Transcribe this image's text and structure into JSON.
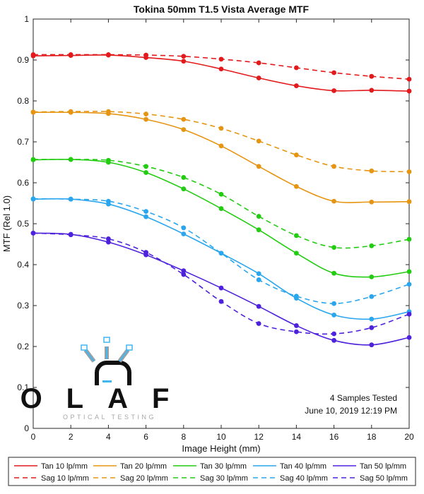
{
  "chart_data": {
    "type": "line",
    "title": "Tokina 50mm T1.5 Vista Average MTF",
    "xlabel": "Image Height (mm)",
    "ylabel": "MTF (Rel 1.0)",
    "xlim": [
      0,
      20
    ],
    "ylim": [
      0,
      1
    ],
    "x": [
      0,
      2,
      4,
      6,
      8,
      10,
      12,
      14,
      16,
      18,
      20
    ],
    "x_ticks": [
      "0",
      "2",
      "4",
      "6",
      "8",
      "10",
      "12",
      "14",
      "16",
      "18",
      "20"
    ],
    "y_ticks": [
      "0",
      "0.1",
      "0.2",
      "0.3",
      "0.4",
      "0.5",
      "0.6",
      "0.7",
      "0.8",
      "0.9",
      "1"
    ],
    "grid": false,
    "legend_position": "bottom",
    "series": [
      {
        "name": "Tan 10 lp/mm",
        "color": "#e31a1c",
        "dash": "solid",
        "values": [
          0.91,
          0.911,
          0.912,
          0.906,
          0.897,
          0.878,
          0.856,
          0.837,
          0.825,
          0.826,
          0.824
        ]
      },
      {
        "name": "Sag 10 lp/mm",
        "color": "#e31a1c",
        "dash": "dashed",
        "values": [
          0.913,
          0.913,
          0.913,
          0.912,
          0.909,
          0.902,
          0.893,
          0.881,
          0.869,
          0.86,
          0.853
        ]
      },
      {
        "name": "Tan 20 lp/mm",
        "color": "#e69512",
        "dash": "solid",
        "values": [
          0.772,
          0.772,
          0.769,
          0.755,
          0.73,
          0.69,
          0.64,
          0.591,
          0.555,
          0.553,
          0.554
        ]
      },
      {
        "name": "Sag 20 lp/mm",
        "color": "#e69512",
        "dash": "dashed",
        "values": [
          0.773,
          0.774,
          0.774,
          0.768,
          0.755,
          0.733,
          0.702,
          0.668,
          0.64,
          0.629,
          0.627
        ]
      },
      {
        "name": "Tan 30 lp/mm",
        "color": "#22cc11",
        "dash": "solid",
        "values": [
          0.656,
          0.657,
          0.65,
          0.625,
          0.585,
          0.537,
          0.485,
          0.428,
          0.379,
          0.37,
          0.383
        ]
      },
      {
        "name": "Sag 30 lp/mm",
        "color": "#22cc11",
        "dash": "dashed",
        "values": [
          0.657,
          0.657,
          0.655,
          0.64,
          0.613,
          0.572,
          0.518,
          0.471,
          0.442,
          0.446,
          0.462
        ]
      },
      {
        "name": "Tan 40 lp/mm",
        "color": "#2aa6ee",
        "dash": "solid",
        "values": [
          0.56,
          0.56,
          0.548,
          0.517,
          0.475,
          0.428,
          0.378,
          0.318,
          0.277,
          0.267,
          0.285
        ]
      },
      {
        "name": "Sag 40 lp/mm",
        "color": "#2aa6ee",
        "dash": "dashed",
        "values": [
          0.561,
          0.56,
          0.555,
          0.53,
          0.49,
          0.428,
          0.363,
          0.323,
          0.305,
          0.322,
          0.352
        ]
      },
      {
        "name": "Tan 50 lp/mm",
        "color": "#4e22dd",
        "dash": "solid",
        "values": [
          0.477,
          0.474,
          0.455,
          0.424,
          0.385,
          0.343,
          0.298,
          0.251,
          0.215,
          0.204,
          0.222
        ]
      },
      {
        "name": "Sag 50 lp/mm",
        "color": "#4e22dd",
        "dash": "dashed",
        "values": [
          0.477,
          0.473,
          0.463,
          0.43,
          0.376,
          0.31,
          0.256,
          0.236,
          0.231,
          0.246,
          0.279
        ]
      }
    ]
  },
  "annotation": {
    "samples": "4 Samples Tested",
    "date": "June 10, 2019 12:19 PM"
  },
  "logo": {
    "wordmark": "OLAF",
    "tagline": "OPTICAL TESTING"
  }
}
